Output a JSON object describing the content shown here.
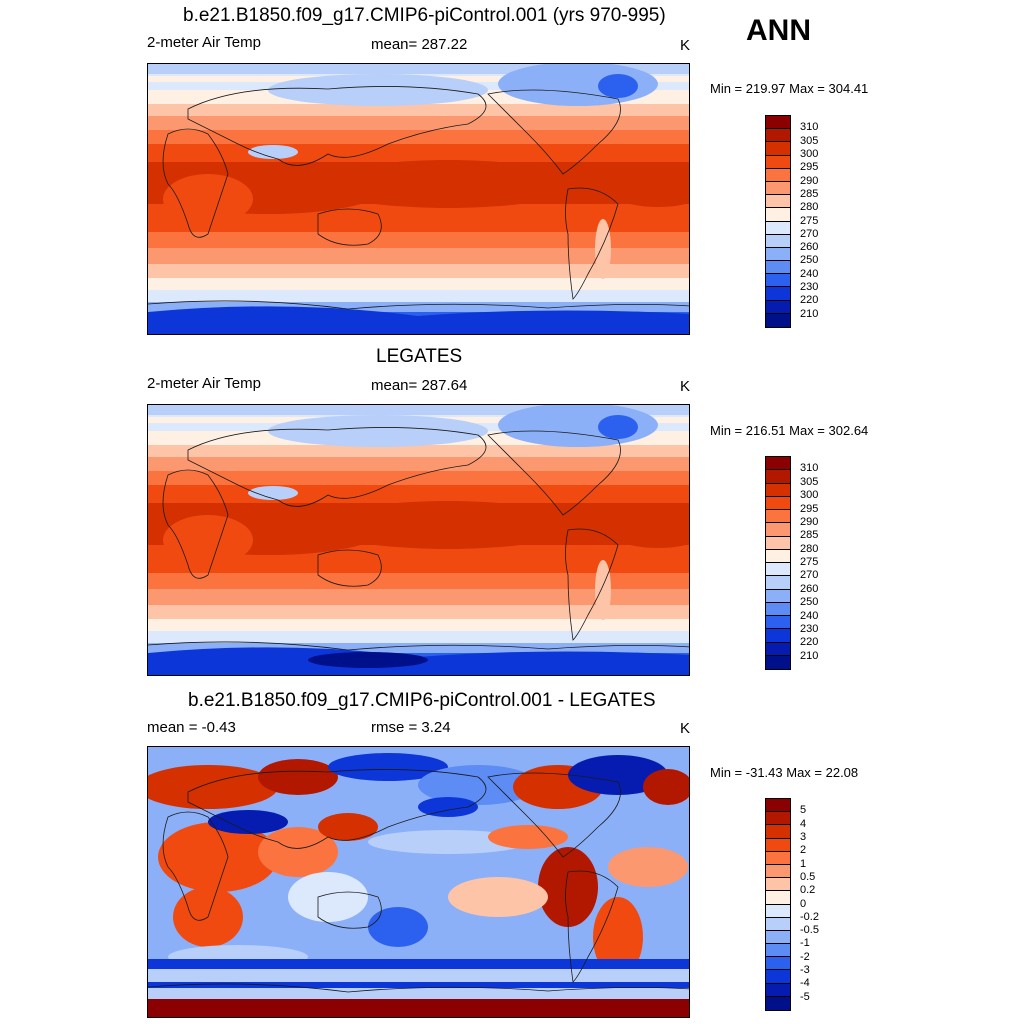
{
  "season": "ANN",
  "panels": [
    {
      "title": "b.e21.B1850.f09_g17.CMIP6-piControl.001 (yrs 970-995)",
      "left_text": "2-meter Air Temp",
      "center_text": "mean= 287.22",
      "units": "K",
      "minmax": "Min = 219.97 Max = 304.41",
      "kind": "field"
    },
    {
      "title": "LEGATES",
      "left_text": "2-meter Air Temp",
      "center_text": "mean= 287.64",
      "units": "K",
      "minmax": "Min = 216.51 Max = 302.64",
      "kind": "field"
    },
    {
      "title": "b.e21.B1850.f09_g17.CMIP6-piControl.001 - LEGATES",
      "left_text": "mean =  -0.43",
      "center_text": "rmse =   3.24",
      "units": "K",
      "minmax": "Min = -31.43 Max =  22.08",
      "kind": "diff"
    }
  ],
  "colorbars": {
    "field": {
      "labels": [
        "310",
        "305",
        "300",
        "295",
        "290",
        "285",
        "280",
        "275",
        "270",
        "260",
        "250",
        "240",
        "230",
        "220",
        "210"
      ],
      "colors": [
        "#8b0000",
        "#b21800",
        "#d43000",
        "#f04a10",
        "#fb7440",
        "#fc9870",
        "#fdc4a8",
        "#fff0e4",
        "#dce8fb",
        "#b8cffa",
        "#8cb0f8",
        "#5c8cf4",
        "#2c60ee",
        "#0c36d8",
        "#061cb0",
        "#00108a"
      ]
    },
    "diff": {
      "labels": [
        "5",
        "4",
        "3",
        "2",
        "1",
        "0.5",
        "0.2",
        "0",
        "-0.2",
        "-0.5",
        "-1",
        "-2",
        "-3",
        "-4",
        "-5"
      ],
      "colors": [
        "#8b0000",
        "#b21800",
        "#d43000",
        "#f04a10",
        "#fb7440",
        "#fc9870",
        "#fdc4a8",
        "#fff0e4",
        "#dce8fb",
        "#b8cffa",
        "#8cb0f8",
        "#5c8cf4",
        "#2c60ee",
        "#0c36d8",
        "#061cb0",
        "#00108a"
      ]
    }
  }
}
